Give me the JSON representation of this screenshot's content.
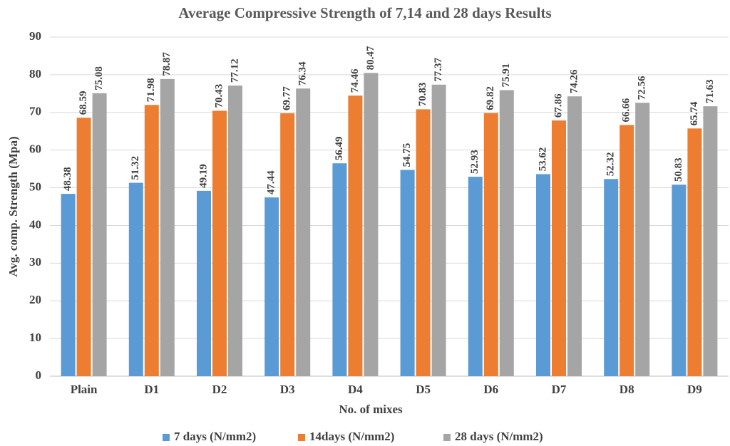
{
  "chart_data": {
    "type": "bar",
    "title": "Average Compressive Strength of 7,14 and 28 days Results",
    "x_label": "No. of mixes",
    "y_label": "Avg. comp. Strength (Mpa)",
    "categories": [
      "Plain",
      "D1",
      "D2",
      "D3",
      "D4",
      "D5",
      "D6",
      "D7",
      "D8",
      "D9"
    ],
    "series": [
      {
        "name": "7 days (N/mm2)",
        "color": "#5b9bd5",
        "values": [
          48.38,
          51.32,
          49.19,
          47.44,
          56.49,
          54.75,
          52.93,
          53.62,
          52.32,
          50.83
        ]
      },
      {
        "name": "14days (N/mm2)",
        "color": "#ed7d31",
        "values": [
          68.59,
          71.98,
          70.43,
          69.77,
          74.46,
          70.83,
          69.82,
          67.86,
          66.66,
          65.74
        ]
      },
      {
        "name": "28 days (N/mm2)",
        "color": "#a5a5a5",
        "values": [
          75.08,
          78.87,
          77.12,
          76.34,
          80.47,
          77.37,
          75.91,
          74.26,
          72.56,
          71.63
        ]
      }
    ],
    "ylim": [
      0,
      90
    ],
    "yticks": [
      0,
      10,
      20,
      30,
      40,
      50,
      60,
      70,
      80,
      90
    ],
    "grid": true,
    "legend": "bottom"
  }
}
